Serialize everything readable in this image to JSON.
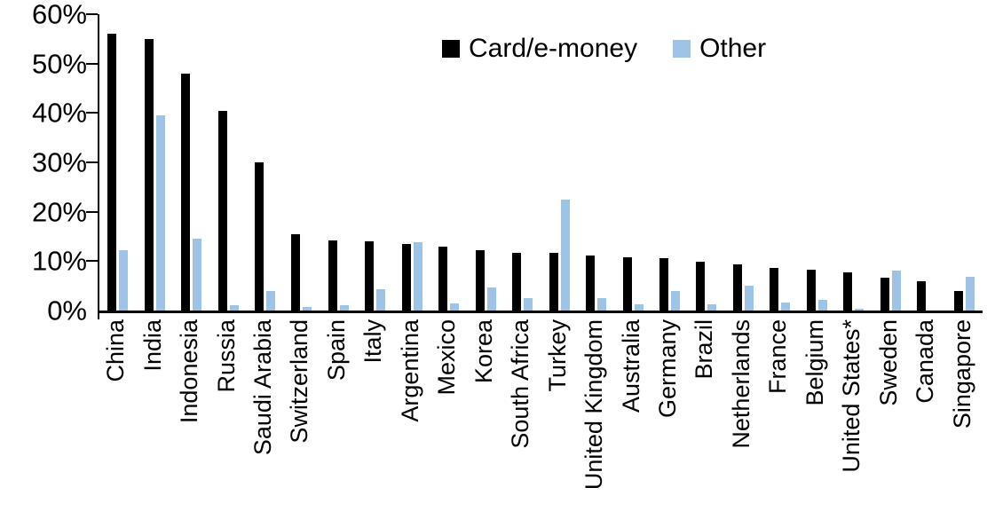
{
  "chart_data": {
    "type": "bar",
    "title": "",
    "xlabel": "",
    "ylabel": "",
    "ylim": [
      0,
      60
    ],
    "ytick_step": 10,
    "ytick_labels": [
      "0%",
      "10%",
      "20%",
      "30%",
      "40%",
      "50%",
      "60%"
    ],
    "grid": false,
    "legend_position": "top-center",
    "categories": [
      "China",
      "India",
      "Indonesia",
      "Russia",
      "Saudi Arabia",
      "Switzerland",
      "Spain",
      "Italy",
      "Argentina",
      "Mexico",
      "Korea",
      "South Africa",
      "Turkey",
      "United Kingdom",
      "Australia",
      "Germany",
      "Brazil",
      "Netherlands",
      "France",
      "Belgium",
      "United States*",
      "Sweden",
      "Canada",
      "Singapore"
    ],
    "series": [
      {
        "name": "Card/e-money",
        "color": "#000000",
        "values": [
          56,
          55,
          48,
          40.5,
          30,
          15.5,
          14.2,
          14,
          13.4,
          13,
          12.3,
          11.7,
          11.6,
          11.1,
          10.8,
          10.6,
          9.9,
          9.4,
          8.6,
          8.2,
          7.8,
          6.6,
          6,
          4
        ]
      },
      {
        "name": "Other",
        "color": "#9DC3E6",
        "values": [
          12.3,
          39.5,
          14.5,
          1,
          4,
          0.8,
          1.1,
          4.4,
          13.9,
          1.5,
          4.6,
          2.6,
          22.5,
          2.5,
          1.2,
          4,
          1.2,
          5,
          1.6,
          2.1,
          0.3,
          8.1,
          0,
          6.8
        ]
      }
    ]
  },
  "legend": {
    "card_label": "Card/e-money",
    "other_label": "Other"
  }
}
